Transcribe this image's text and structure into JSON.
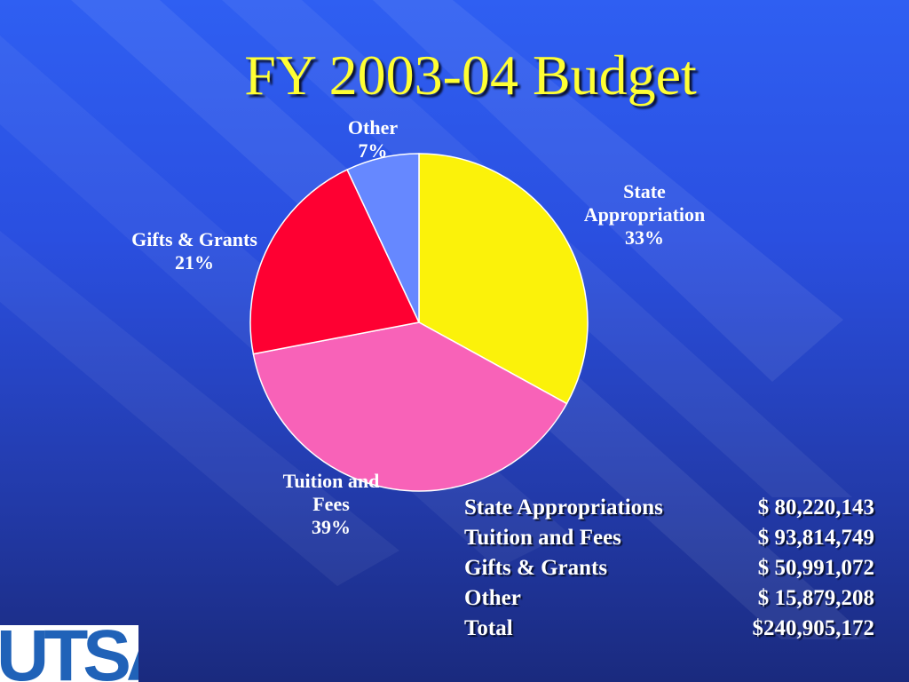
{
  "title": "FY 2003-04 Budget",
  "chart_data": {
    "type": "pie",
    "slices": [
      {
        "label": "State Appropriation",
        "label_lines": [
          "State",
          "Appropriation"
        ],
        "percent": 33,
        "percent_label": "33%",
        "color": "#fbf20a"
      },
      {
        "label": "Tuition and Fees",
        "label_lines": [
          "Tuition and",
          "Fees"
        ],
        "percent": 39,
        "percent_label": "39%",
        "color": "#f862b8"
      },
      {
        "label": "Gifts & Grants",
        "label_lines": [
          "Gifts & Grants"
        ],
        "percent": 21,
        "percent_label": "21%",
        "color": "#fe0032"
      },
      {
        "label": "Other",
        "label_lines": [
          "Other"
        ],
        "percent": 7,
        "percent_label": "7%",
        "color": "#6688ff"
      }
    ]
  },
  "table": {
    "rows": [
      {
        "name": "State Appropriations",
        "amount": "$  80,220,143"
      },
      {
        "name": "Tuition and Fees",
        "amount": "$  93,814,749"
      },
      {
        "name": "Gifts & Grants",
        "amount": "$  50,991,072"
      },
      {
        "name": "Other",
        "amount": "$  15,879,208"
      },
      {
        "name": "Total",
        "amount": "$240,905,172"
      }
    ]
  },
  "logo": {
    "text": "UTSA"
  }
}
